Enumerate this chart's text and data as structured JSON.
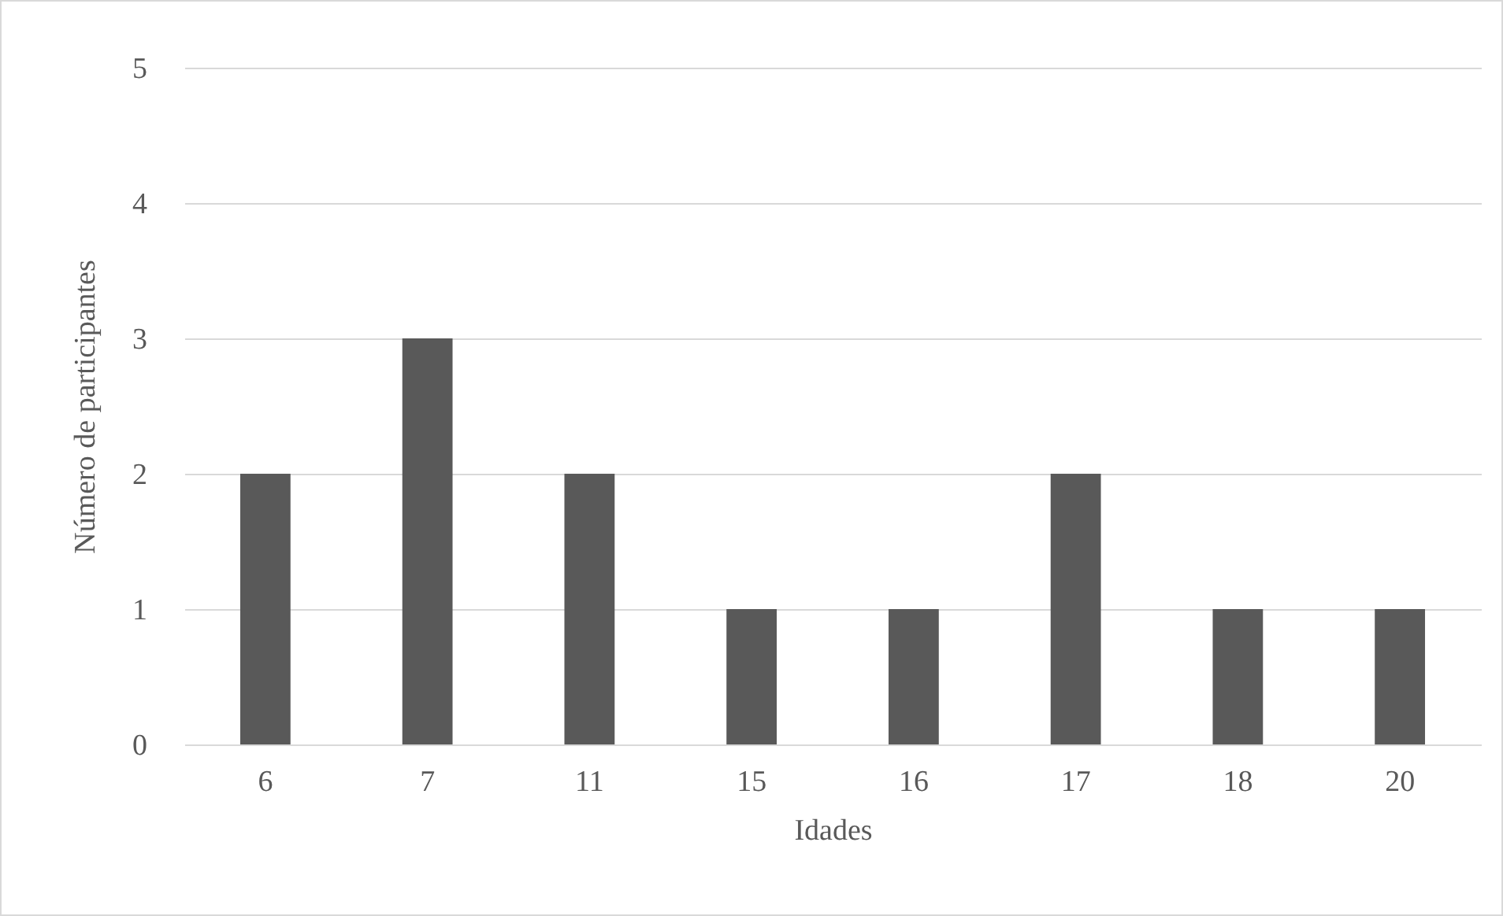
{
  "chart_data": {
    "type": "bar",
    "xlabel": "Idades",
    "ylabel": "Número de participantes",
    "categories": [
      "6",
      "7",
      "11",
      "15",
      "16",
      "17",
      "18",
      "20"
    ],
    "values": [
      2,
      3,
      2,
      1,
      1,
      2,
      1,
      1
    ],
    "color": "#595959",
    "ylim": [
      0,
      5
    ],
    "yticks": [
      0,
      1,
      2,
      3,
      4,
      5
    ],
    "grid": "y"
  }
}
